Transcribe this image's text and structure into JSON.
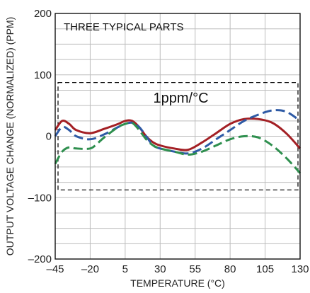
{
  "chart_data": {
    "type": "line",
    "title": "",
    "inner_label": "THREE TYPICAL PARTS",
    "xlabel": "TEMPERATURE (°C)",
    "ylabel": "OUTPUT VOLTAGE CHANGE (NORMALIZED) (PPM)",
    "xlim": [
      -45,
      130
    ],
    "ylim": [
      -200,
      200
    ],
    "xticks": [
      -45,
      -20,
      5,
      30,
      55,
      80,
      105,
      130
    ],
    "yticks": [
      -200,
      -100,
      0,
      100,
      200
    ],
    "xtick_labels": [
      "–45",
      "–20",
      "5",
      "30",
      "55",
      "80",
      "105",
      "130"
    ],
    "ytick_labels": [
      "–200",
      "–100",
      "0",
      "100",
      "200"
    ],
    "grid": true,
    "spec_box": {
      "label": "1ppm/°C",
      "x": [
        -45,
        130
      ],
      "y": [
        -87.5,
        87.5
      ]
    },
    "series": [
      {
        "style": "solid",
        "color": "#a31f24",
        "points": [
          [
            -45,
            10
          ],
          [
            -40,
            25
          ],
          [
            -35,
            20
          ],
          [
            -30,
            10
          ],
          [
            -20,
            5
          ],
          [
            -10,
            12
          ],
          [
            0,
            20
          ],
          [
            5,
            25
          ],
          [
            10,
            25
          ],
          [
            15,
            15
          ],
          [
            20,
            0
          ],
          [
            25,
            -10
          ],
          [
            30,
            -15
          ],
          [
            40,
            -20
          ],
          [
            50,
            -22
          ],
          [
            60,
            -10
          ],
          [
            70,
            5
          ],
          [
            80,
            20
          ],
          [
            90,
            28
          ],
          [
            100,
            28
          ],
          [
            110,
            22
          ],
          [
            120,
            5
          ],
          [
            130,
            -20
          ]
        ]
      },
      {
        "style": "dashed",
        "color": "#2e5aa5",
        "points": [
          [
            -45,
            0
          ],
          [
            -40,
            15
          ],
          [
            -35,
            10
          ],
          [
            -30,
            0
          ],
          [
            -20,
            -5
          ],
          [
            -10,
            3
          ],
          [
            0,
            15
          ],
          [
            5,
            20
          ],
          [
            10,
            22
          ],
          [
            15,
            15
          ],
          [
            20,
            0
          ],
          [
            25,
            -15
          ],
          [
            30,
            -20
          ],
          [
            40,
            -25
          ],
          [
            50,
            -28
          ],
          [
            60,
            -20
          ],
          [
            70,
            -5
          ],
          [
            80,
            10
          ],
          [
            90,
            25
          ],
          [
            100,
            35
          ],
          [
            110,
            42
          ],
          [
            120,
            40
          ],
          [
            130,
            25
          ]
        ]
      },
      {
        "style": "dashed",
        "color": "#2e8f4e",
        "points": [
          [
            -45,
            -45
          ],
          [
            -40,
            -25
          ],
          [
            -35,
            -18
          ],
          [
            -30,
            -20
          ],
          [
            -20,
            -20
          ],
          [
            -15,
            -12
          ],
          [
            -10,
            -2
          ],
          [
            0,
            15
          ],
          [
            5,
            20
          ],
          [
            10,
            22
          ],
          [
            15,
            10
          ],
          [
            20,
            -5
          ],
          [
            25,
            -15
          ],
          [
            30,
            -20
          ],
          [
            40,
            -25
          ],
          [
            50,
            -30
          ],
          [
            60,
            -25
          ],
          [
            70,
            -15
          ],
          [
            80,
            -5
          ],
          [
            90,
            0
          ],
          [
            100,
            -2
          ],
          [
            110,
            -15
          ],
          [
            120,
            -35
          ],
          [
            130,
            -60
          ]
        ]
      }
    ]
  }
}
